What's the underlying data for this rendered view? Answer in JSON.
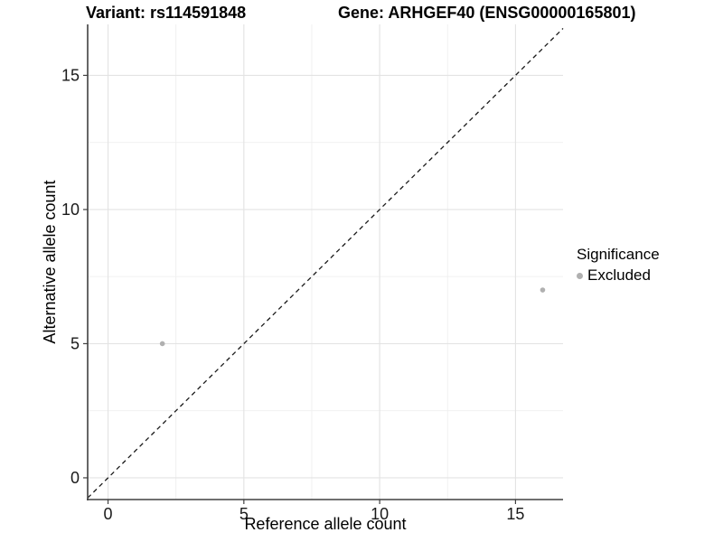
{
  "chart_data": {
    "type": "scatter",
    "titles": {
      "left": "Variant: rs114591848",
      "right": "Gene: ARHGEF40 (ENSG00000165801)"
    },
    "xlabel": "Reference allele count",
    "ylabel": "Alternative allele count",
    "xlim": [
      -0.75,
      16.75
    ],
    "ylim": [
      -0.81,
      16.9
    ],
    "x_ticks": [
      0,
      5,
      10,
      15
    ],
    "y_ticks": [
      0,
      5,
      10,
      15
    ],
    "x_minor_ticks": [
      2.5,
      7.5,
      12.5
    ],
    "y_minor_ticks": [
      2.5,
      7.5,
      12.5
    ],
    "grid": true,
    "background": "#ffffff",
    "series": [
      {
        "name": "Excluded",
        "color": "#b0b0b0",
        "point_radius": 2.8,
        "points": [
          [
            2,
            5
          ],
          [
            16,
            7
          ]
        ]
      }
    ],
    "reference_line": {
      "type": "identity",
      "slope": 1,
      "intercept": 0,
      "style": "dashed",
      "color": "#1a1a1a"
    },
    "legend": {
      "title": "Significance",
      "position": "right",
      "items": [
        {
          "label": "Excluded",
          "color": "#b0b0b0"
        }
      ]
    }
  }
}
